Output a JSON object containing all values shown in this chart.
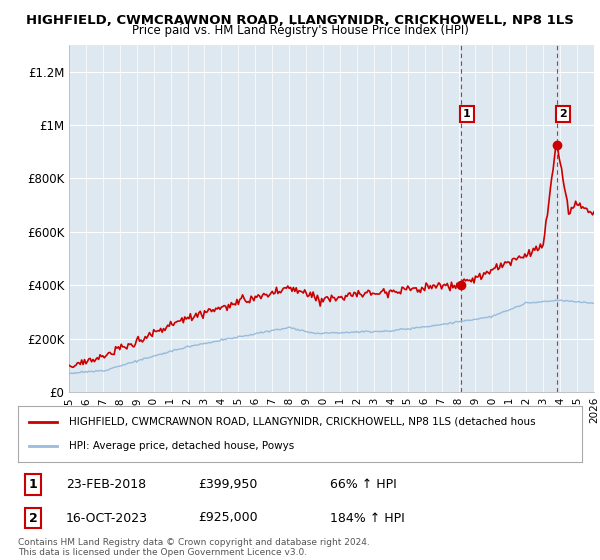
{
  "title1": "HIGHFIELD, CWMCRAWNON ROAD, LLANGYNIDR, CRICKHOWELL, NP8 1LS",
  "title2": "Price paid vs. HM Land Registry's House Price Index (HPI)",
  "ylabel_ticks": [
    "£0",
    "£200K",
    "£400K",
    "£600K",
    "£800K",
    "£1M",
    "£1.2M"
  ],
  "ylabel_values": [
    0,
    200000,
    400000,
    600000,
    800000,
    1000000,
    1200000
  ],
  "ylim": [
    0,
    1300000
  ],
  "xlim_start": 1995,
  "xlim_end": 2026,
  "legend_line1": "HIGHFIELD, CWMCRAWNON ROAD, LLANGYNIDR, CRICKHOWELL, NP8 1LS (detached hous",
  "legend_line2": "HPI: Average price, detached house, Powys",
  "sale1_label": "1",
  "sale1_date": "23-FEB-2018",
  "sale1_price": "£399,950",
  "sale1_hpi": "66% ↑ HPI",
  "sale1_x": 2018.12,
  "sale1_y": 399950,
  "sale2_label": "2",
  "sale2_date": "16-OCT-2023",
  "sale2_price": "£925,000",
  "sale2_hpi": "184% ↑ HPI",
  "sale2_x": 2023.79,
  "sale2_y": 925000,
  "copyright": "Contains HM Land Registry data © Crown copyright and database right 2024.\nThis data is licensed under the Open Government Licence v3.0.",
  "red_color": "#cc0000",
  "blue_color": "#99bbdd",
  "background_color": "#ffffff",
  "chart_bg": "#dde8f0",
  "grid_color": "#ffffff"
}
